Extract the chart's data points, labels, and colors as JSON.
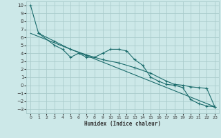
{
  "xlabel": "Humidex (Indice chaleur)",
  "bg_color": "#cce8e8",
  "grid_color": "#aacccc",
  "line_color": "#1a6b6b",
  "xlim": [
    -0.5,
    23.5
  ],
  "ylim": [
    -3.5,
    10.5
  ],
  "yticks": [
    -3,
    -2,
    -1,
    0,
    1,
    2,
    3,
    4,
    5,
    6,
    7,
    8,
    9,
    10
  ],
  "xticks": [
    0,
    1,
    2,
    3,
    4,
    5,
    6,
    7,
    8,
    9,
    10,
    11,
    12,
    13,
    14,
    15,
    16,
    17,
    18,
    19,
    20,
    21,
    22,
    23
  ],
  "line1_x": [
    0,
    1,
    3,
    4,
    5,
    6,
    7,
    8,
    9,
    10,
    11,
    12,
    13,
    14,
    15,
    16,
    17,
    18,
    19,
    20,
    21,
    22,
    23
  ],
  "line1_y": [
    10,
    6.5,
    5.0,
    4.5,
    3.5,
    4.0,
    3.5,
    3.5,
    4.0,
    4.5,
    4.5,
    4.3,
    3.2,
    2.5,
    1.0,
    0.5,
    0.1,
    0.0,
    -0.3,
    -1.8,
    -2.3,
    -2.6,
    -2.7
  ],
  "line2_x": [
    1,
    3,
    5,
    7,
    9,
    11,
    13,
    15,
    17,
    18,
    19,
    20,
    21,
    22,
    23
  ],
  "line2_y": [
    6.5,
    5.5,
    4.5,
    3.8,
    3.2,
    2.8,
    2.2,
    1.5,
    0.5,
    0.1,
    0.0,
    -0.2,
    -0.3,
    -0.4,
    -2.7
  ],
  "line3_x": [
    0,
    23
  ],
  "line3_y": [
    6.5,
    -2.7
  ]
}
